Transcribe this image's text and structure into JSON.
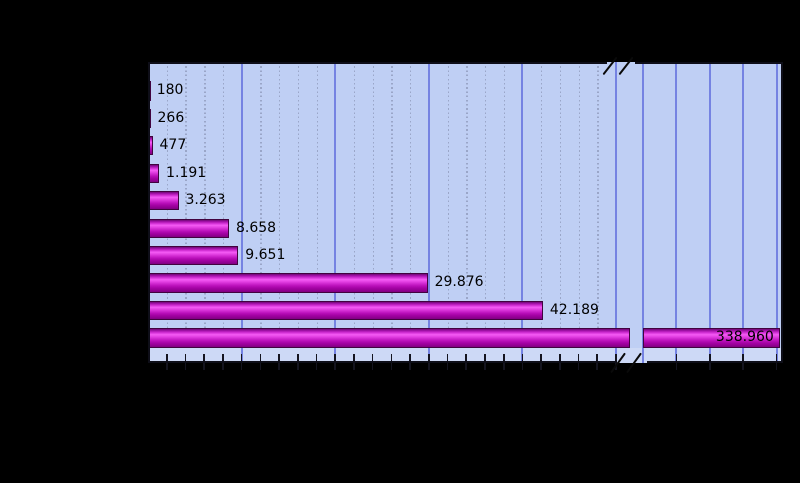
{
  "window": {
    "background": "black (transparent image background)",
    "title": "",
    "notes": "no text visible outside the plot area"
  },
  "chart_data": {
    "type": "bar",
    "orientation": "horizontal",
    "title": "",
    "xlabel": "",
    "ylabel": "",
    "categories_visible": false,
    "values": [
      180,
      266,
      477,
      1191,
      3263,
      8658,
      9651,
      29876,
      42189,
      338960
    ],
    "value_labels": [
      "180",
      "266",
      "477",
      "1.191",
      "3.263",
      "8.658",
      "9.651",
      "29.876",
      "42.189",
      "338.960"
    ],
    "legend": false,
    "grid": true,
    "axis_x": {
      "broken": true,
      "tick_labels_visible": false,
      "sections": [
        {
          "min": 0,
          "max": 51500,
          "major_step": 10000,
          "minor_step": 2000
        },
        {
          "min": 298000,
          "max": 340000,
          "major_step": 10000,
          "minor_step": 0
        }
      ]
    },
    "colors": {
      "outer_background": "#000000",
      "plot_background": "#bfcff4",
      "plot_background_bottom_strip": "#cdd9f6",
      "grid_major": "#7583e2",
      "grid_minor": "#9aa6c8",
      "frame": "#0e0e18",
      "bar_border": "#41033f",
      "bar_gradient_top": "#6e0875",
      "bar_gradient_highlight": "#f45cf4",
      "bar_gradient_bottom": "#7f0080",
      "value_label_text": "#000000"
    }
  }
}
